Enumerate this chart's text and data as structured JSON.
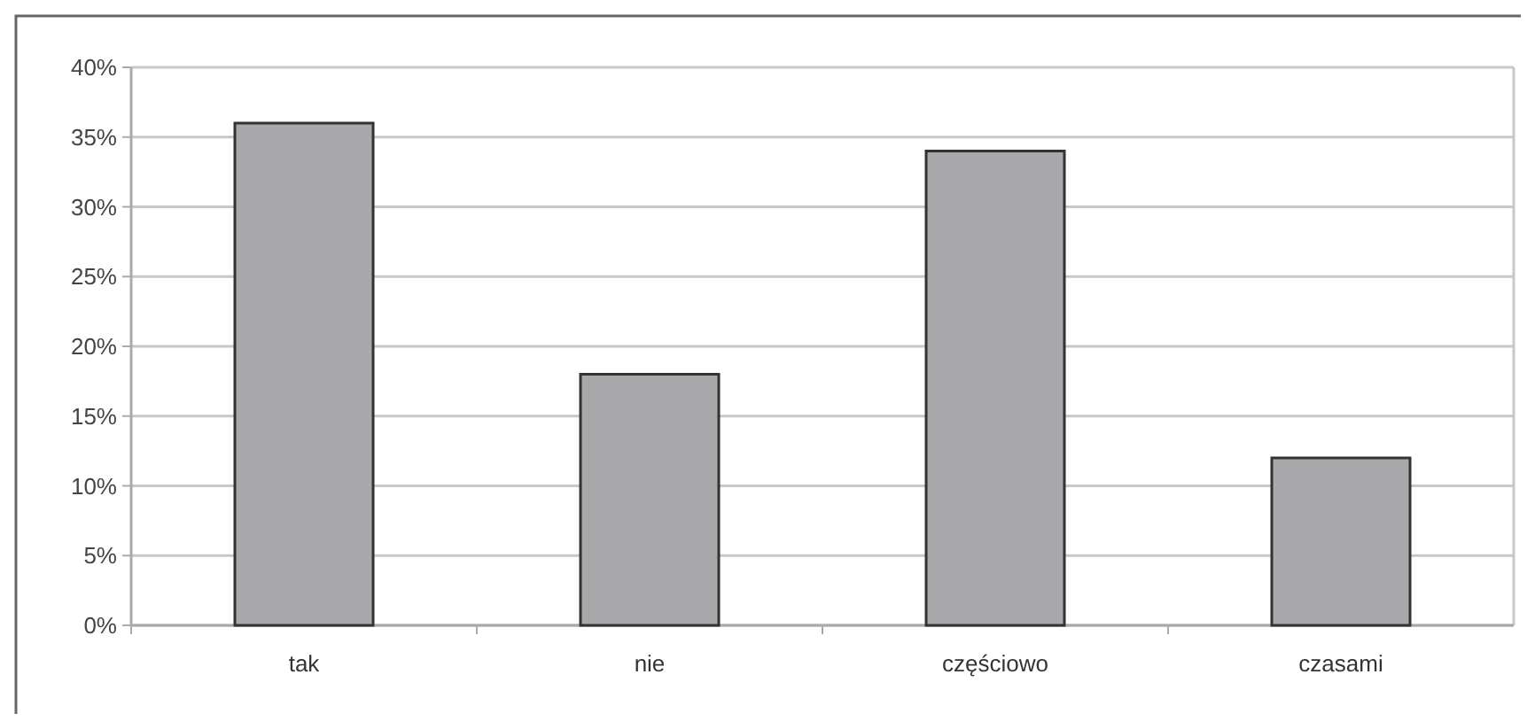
{
  "chart_data": {
    "type": "bar",
    "categories": [
      "tak",
      "nie",
      "częściowo",
      "czasami"
    ],
    "values": [
      36,
      18,
      34,
      12
    ],
    "color": "#a9a9ab",
    "ylim": [
      0,
      40
    ],
    "yticks": [
      {
        "value": 0,
        "label": "0%"
      },
      {
        "value": 5,
        "label": "5%"
      },
      {
        "value": 10,
        "label": "10%"
      },
      {
        "value": 15,
        "label": "15%"
      },
      {
        "value": 20,
        "label": "20%"
      },
      {
        "value": 25,
        "label": "25%"
      },
      {
        "value": 30,
        "label": "30%"
      },
      {
        "value": 35,
        "label": "35%"
      },
      {
        "value": 40,
        "label": "40%"
      }
    ],
    "grid": "y"
  }
}
